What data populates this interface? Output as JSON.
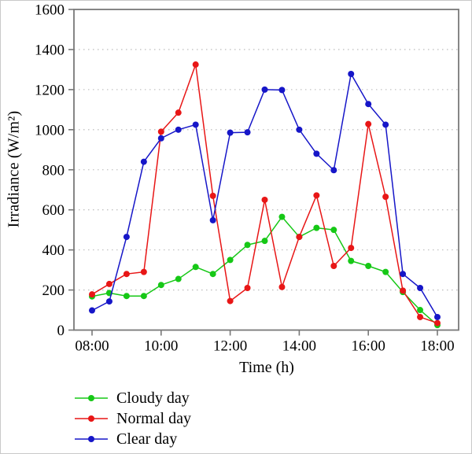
{
  "chart_data": {
    "type": "line",
    "title": "",
    "xlabel": "Time (h)",
    "ylabel": "Irradiance (W/m²)",
    "x_unit": "hours",
    "x": [
      8,
      8.5,
      9,
      9.5,
      10,
      10.5,
      11,
      11.5,
      12,
      12.5,
      13,
      13.5,
      14,
      14.5,
      15,
      15.5,
      16,
      16.5,
      17,
      17.5,
      18
    ],
    "x_ticks": [
      8,
      10,
      12,
      14,
      16,
      18
    ],
    "x_tick_labels": [
      "08:00",
      "10:00",
      "12:00",
      "14:00",
      "16:00",
      "18:00"
    ],
    "y_ticks": [
      0,
      200,
      400,
      600,
      800,
      1000,
      1200,
      1400,
      1600
    ],
    "ylim": [
      0,
      1600
    ],
    "xlim": [
      7.48,
      18.62
    ],
    "grid": "horizontal-dotted",
    "legend_position": "bottom-left-below-axis",
    "series": [
      {
        "name": "Cloudy day",
        "color": "#16c816",
        "values": [
          168,
          185,
          170,
          170,
          225,
          255,
          315,
          280,
          350,
          425,
          445,
          565,
          465,
          510,
          500,
          345,
          320,
          290,
          190,
          100,
          25
        ]
      },
      {
        "name": "Normal day",
        "color": "#e81616",
        "values": [
          178,
          230,
          280,
          290,
          990,
          1085,
          1325,
          670,
          145,
          210,
          650,
          215,
          465,
          672,
          320,
          410,
          1028,
          665,
          197,
          65,
          35
        ]
      },
      {
        "name": "Clear day",
        "color": "#1616c8",
        "values": [
          98,
          143,
          465,
          840,
          957,
          1000,
          1025,
          548,
          985,
          987,
          1200,
          1198,
          1000,
          880,
          798,
          1278,
          1128,
          1025,
          280,
          210,
          65
        ]
      }
    ]
  }
}
